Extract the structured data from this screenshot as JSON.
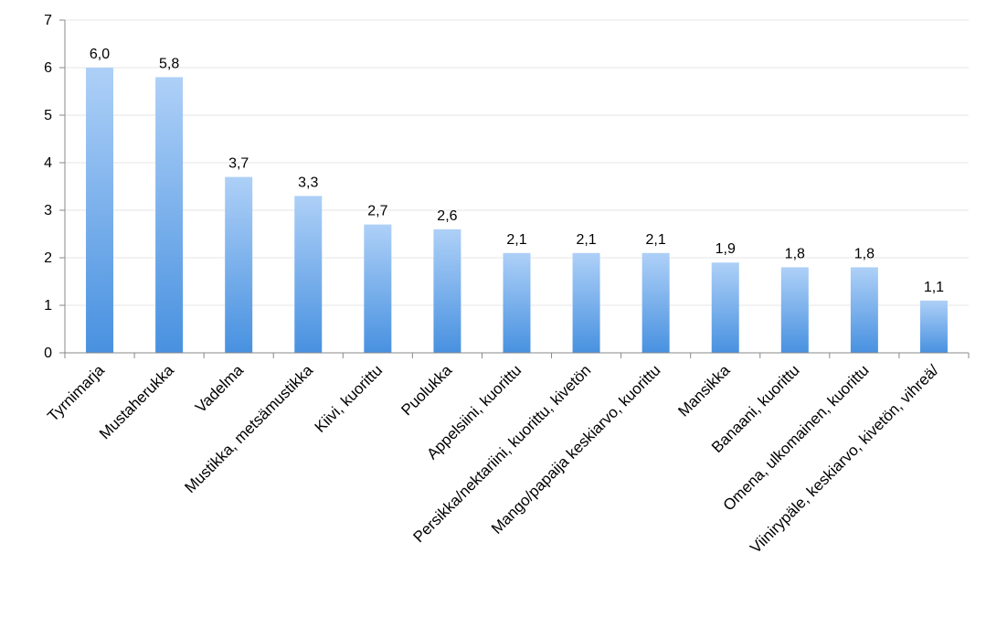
{
  "chart_data": {
    "type": "bar",
    "title": "",
    "xlabel": "",
    "ylabel": "",
    "ylim": [
      0,
      7
    ],
    "yticks": [
      "0",
      "1",
      "2",
      "3",
      "4",
      "5",
      "6",
      "7"
    ],
    "grid": true,
    "legend": "none",
    "bar_color_top": "#aed0f7",
    "bar_color_bottom": "#4891e0",
    "categories": [
      "Tyrnimarja",
      "Mustaherukka",
      "Vadelma",
      "Mustikka, metsämustikka",
      "Kiivi, kuorittu",
      "Puolukka",
      "Appelsiini, kuorittu",
      "Persikka/nektariini, kuorittu, kivetön",
      "Mango/papaija keskiarvo, kuorittu",
      "Mansikka",
      "Banaani, kuorittu",
      "Omena, ulkomainen, kuorittu",
      "Viinirypäle, keskiarvo, kivetön, vihreä/"
    ],
    "values": [
      6.0,
      5.8,
      3.7,
      3.3,
      2.7,
      2.6,
      2.1,
      2.1,
      2.1,
      1.9,
      1.8,
      1.8,
      1.1
    ],
    "data_labels": [
      "6,0",
      "5,8",
      "3,7",
      "3,3",
      "2,7",
      "2,6",
      "2,1",
      "2,1",
      "2,1",
      "1,9",
      "1,8",
      "1,8",
      "1,1"
    ]
  }
}
